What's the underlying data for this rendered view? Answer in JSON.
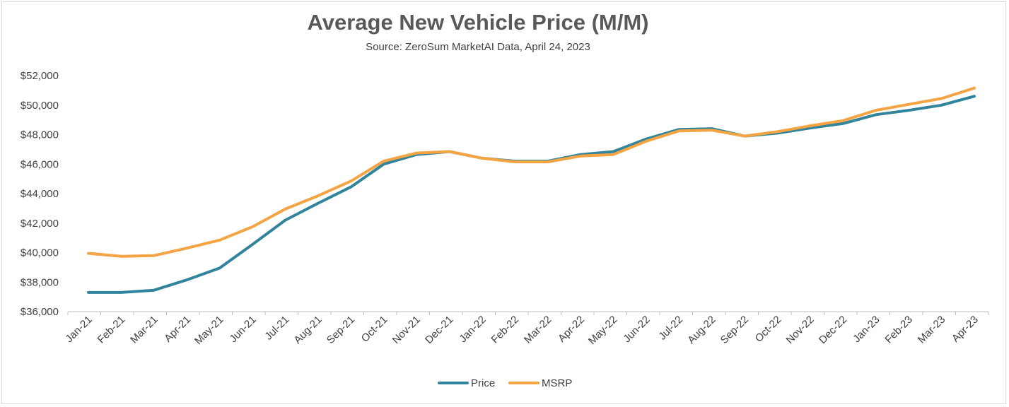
{
  "chart_data": {
    "type": "line",
    "title": "Average New Vehicle Price (M/M)",
    "subtitle": "Source: ZeroSum MarketAI Data, April 24, 2023",
    "xlabel": "",
    "ylabel": "",
    "ylim": [
      36000,
      52000
    ],
    "y_ticks": [
      36000,
      38000,
      40000,
      42000,
      44000,
      46000,
      48000,
      50000,
      52000
    ],
    "y_tick_labels": [
      "$36,000",
      "$38,000",
      "$40,000",
      "$42,000",
      "$44,000",
      "$46,000",
      "$48,000",
      "$50,000",
      "$52,000"
    ],
    "grid": false,
    "legend_position": "bottom-center",
    "categories": [
      "Jan-21",
      "Feb-21",
      "Mar-21",
      "Apr-21",
      "May-21",
      "Jun-21",
      "Jul-21",
      "Aug-21",
      "Sep-21",
      "Oct-21",
      "Nov-21",
      "Dec-21",
      "Jan-22",
      "Feb-22",
      "Mar-22",
      "Apr-22",
      "May-22",
      "Jun-22",
      "Jul-22",
      "Aug-22",
      "Sep-22",
      "Oct-22",
      "Nov-22",
      "Dec-22",
      "Jan-23",
      "Feb-23",
      "Mar-23",
      "Apr-23"
    ],
    "series": [
      {
        "name": "Price",
        "color": "#31849b",
        "values": [
          37300,
          37300,
          37450,
          38150,
          38950,
          40550,
          42200,
          43350,
          44450,
          46000,
          46650,
          46850,
          46400,
          46200,
          46200,
          46650,
          46850,
          47700,
          48350,
          48400,
          47900,
          48100,
          48450,
          48750,
          49350,
          49650,
          50000,
          50600
        ]
      },
      {
        "name": "MSRP",
        "color": "#f4a442",
        "values": [
          39950,
          39750,
          39800,
          40300,
          40850,
          41750,
          42950,
          43850,
          44850,
          46200,
          46750,
          46850,
          46400,
          46150,
          46150,
          46550,
          46650,
          47550,
          48250,
          48300,
          47900,
          48200,
          48600,
          48950,
          49650,
          50050,
          50450,
          51150
        ]
      }
    ]
  }
}
